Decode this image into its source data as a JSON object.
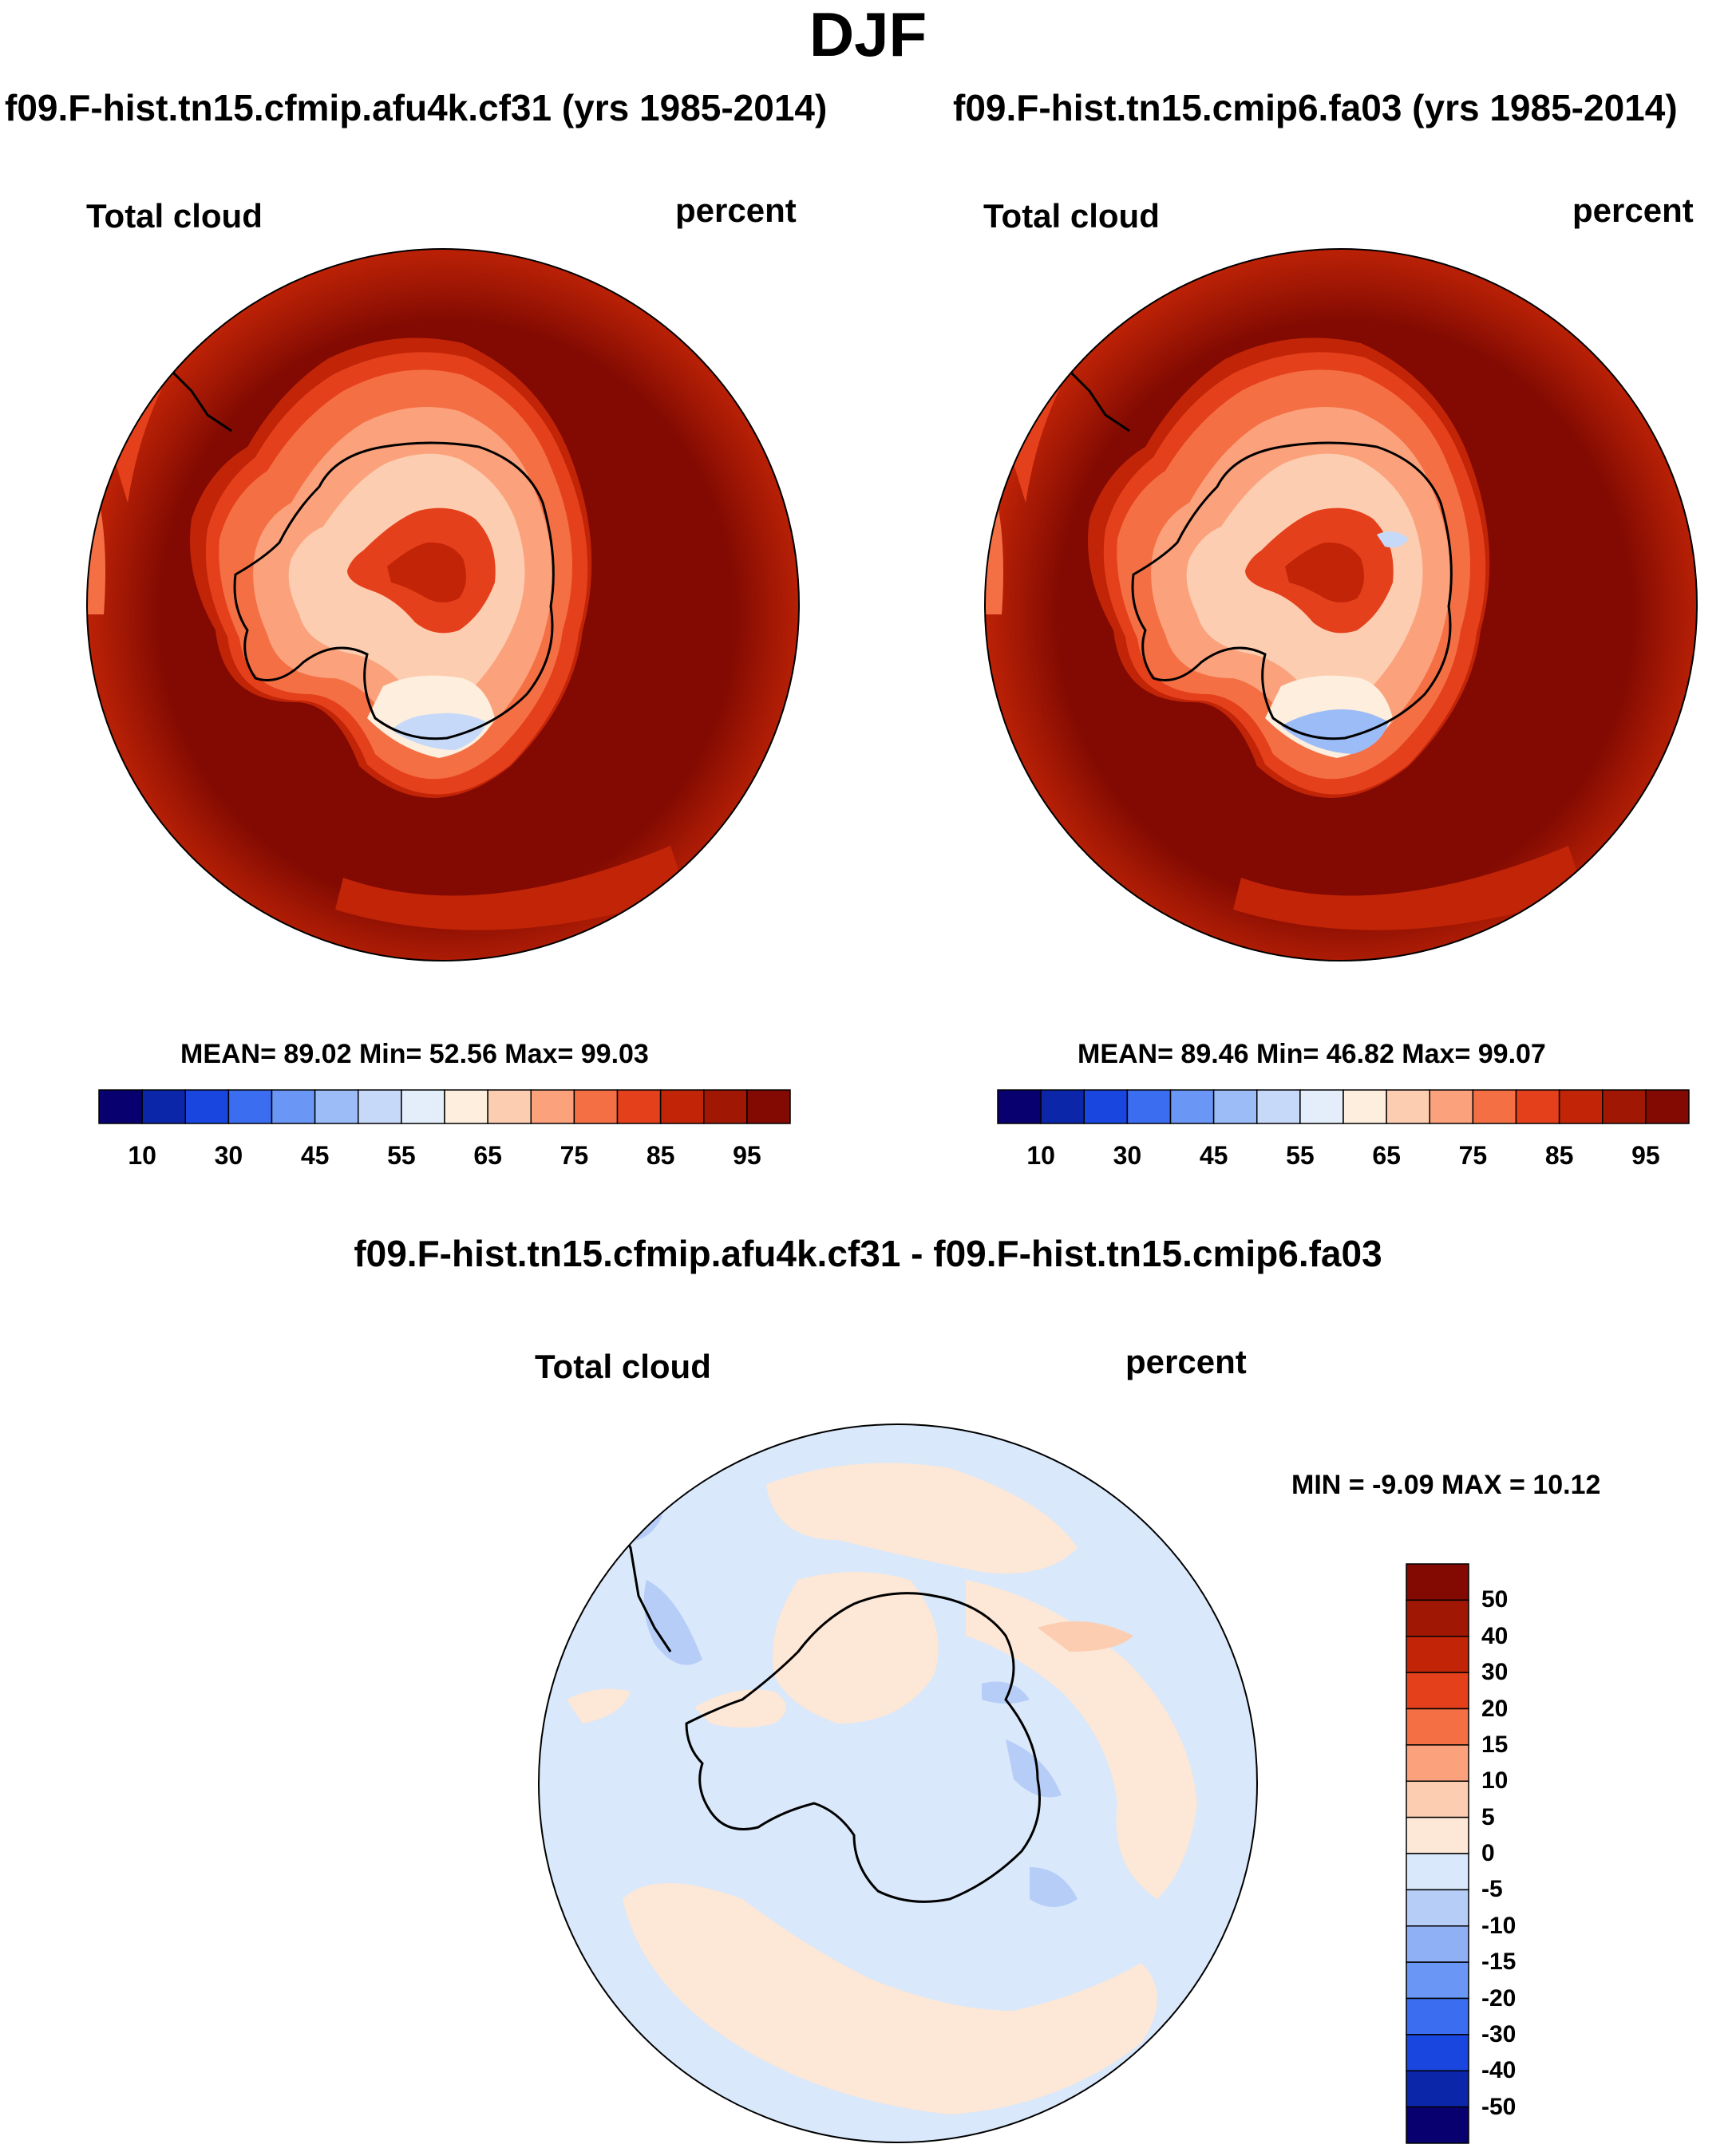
{
  "main_title": "DJF",
  "panels": [
    {
      "case_title": "f09.F-hist.tn15.cfmip.afu4k.cf31 (yrs 1985-2014)",
      "variable": "Total cloud",
      "units": "percent",
      "stats": "MEAN=  89.02  Min=  52.56  Max=  99.03",
      "mean": 89.02,
      "min": 52.56,
      "max": 99.03,
      "colorbar_ticks": [
        "10",
        "30",
        "45",
        "55",
        "65",
        "75",
        "85",
        "95"
      ]
    },
    {
      "case_title": "f09.F-hist.tn15.cmip6.fa03 (yrs 1985-2014)",
      "variable": "Total cloud",
      "units": "percent",
      "stats": "MEAN=  89.46  Min=  46.82  Max=  99.07",
      "mean": 89.46,
      "min": 46.82,
      "max": 99.07,
      "colorbar_ticks": [
        "10",
        "30",
        "45",
        "55",
        "65",
        "75",
        "85",
        "95"
      ]
    }
  ],
  "diff": {
    "title": "f09.F-hist.tn15.cfmip.afu4k.cf31 - f09.F-hist.tn15.cmip6.fa03",
    "variable": "Total cloud",
    "units": "percent",
    "stats": "MIN =  -9.09 MAX =  10.12",
    "min": -9.09,
    "max": 10.12,
    "colorbar_ticks": [
      "50",
      "40",
      "30",
      "20",
      "15",
      "10",
      "5",
      "0",
      "-5",
      "-10",
      "-15",
      "-20",
      "-30",
      "-40",
      "-50"
    ]
  },
  "colors": {
    "abs_scale": [
      "#08006e",
      "#0b26a8",
      "#1846de",
      "#3a6df0",
      "#6a96f5",
      "#9bbcf7",
      "#c6d9f8",
      "#e4eefa",
      "#fdeedd",
      "#fccdb0",
      "#fba27c",
      "#f56f44",
      "#e5401c",
      "#c22407",
      "#a01704",
      "#820a02"
    ],
    "diff_scale": [
      "#820a02",
      "#a01704",
      "#c22407",
      "#e5401c",
      "#f56f44",
      "#fba27c",
      "#fccdb0",
      "#fde7d6",
      "#d9e8fa",
      "#b6cdf8",
      "#8fb0f5",
      "#6a96f5",
      "#3a6df0",
      "#1846de",
      "#0b26a8",
      "#08006e"
    ]
  }
}
